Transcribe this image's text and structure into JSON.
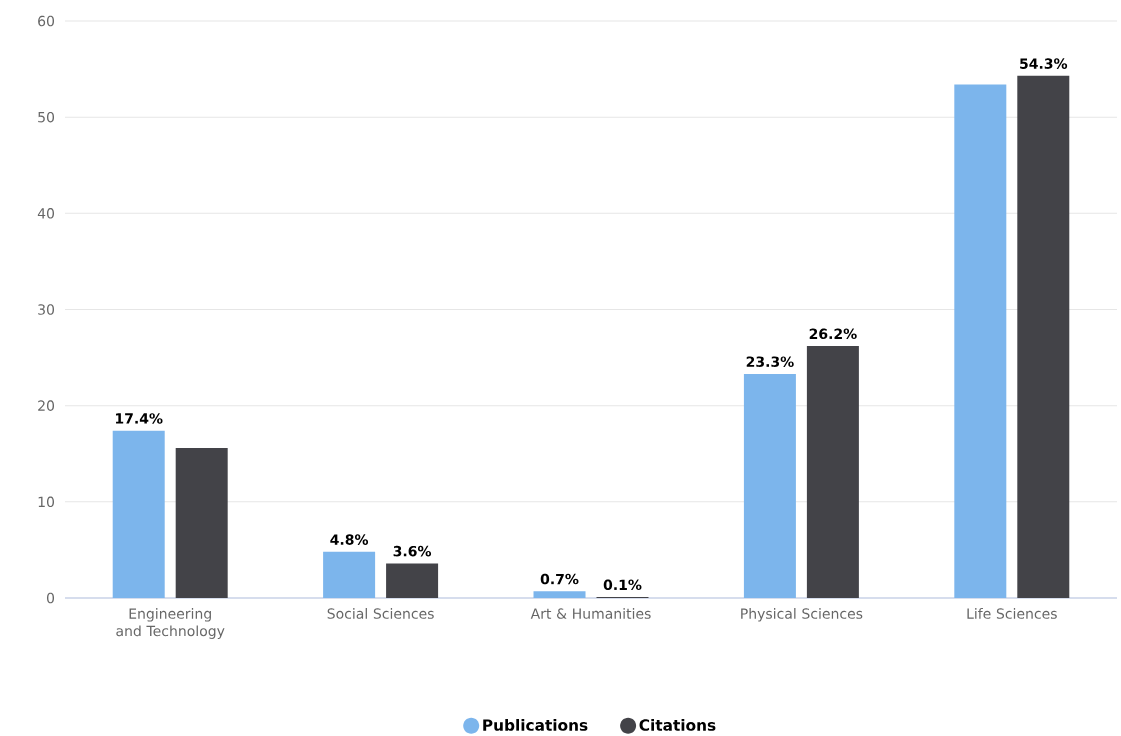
{
  "chart_data": {
    "type": "bar",
    "categories": [
      "Engineering and Technology",
      "Social Sciences",
      "Art & Humanities",
      "Physical Sciences",
      "Life Sciences"
    ],
    "series": [
      {
        "name": "Publications",
        "color": "#7cb5ec",
        "values": [
          17.4,
          4.8,
          0.7,
          23.3,
          53.4
        ],
        "value_labels": [
          "17.4%",
          "4.8%",
          "0.7%",
          "23.3%",
          null
        ]
      },
      {
        "name": "Citations",
        "color": "#434348",
        "values": [
          15.6,
          3.6,
          0.1,
          26.2,
          54.3
        ],
        "value_labels": [
          null,
          "3.6%",
          "0.1%",
          "26.2%",
          "54.3%"
        ]
      }
    ],
    "ylim": [
      0,
      60
    ],
    "yticks": [
      0,
      10,
      20,
      30,
      40,
      50,
      60
    ],
    "grid": "y",
    "legend": "bottom"
  }
}
